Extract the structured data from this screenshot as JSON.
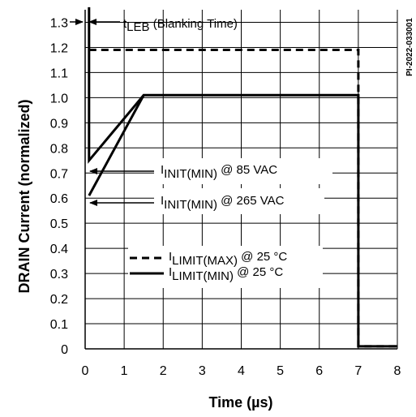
{
  "chart_data": {
    "type": "line",
    "xlabel": "Time (µs)",
    "ylabel": "DRAIN Current   (normalized)",
    "figure_id": "PI-2022-033001",
    "xlim": [
      0,
      8
    ],
    "ylim": [
      0,
      1.35
    ],
    "x_ticks": [
      "0",
      "1",
      "2",
      "3",
      "4",
      "5",
      "6",
      "7",
      "8"
    ],
    "y_ticks": [
      "0",
      "0.1",
      "0.2",
      "0.3",
      "0.4",
      "0.5",
      "0.6",
      "0.7",
      "0.8",
      "0.9",
      "1.0",
      "1.1",
      "1.2",
      "1.3"
    ],
    "grid": true,
    "series": [
      {
        "name": "ILIMIT(MAX) @ 25 °C",
        "style": "dashed",
        "points": [
          [
            0.1,
            1.19
          ],
          [
            7,
            1.19
          ],
          [
            7,
            0.01
          ],
          [
            8,
            0.01
          ]
        ]
      },
      {
        "name": "ILIMIT(MIN) @ 25 °C",
        "style": "solid",
        "points": [
          [
            0.1,
            1.36
          ],
          [
            0.1,
            0.75
          ],
          [
            1.5,
            1.01
          ],
          [
            7,
            1.01
          ],
          [
            7,
            0.01
          ],
          [
            8,
            0.01
          ]
        ]
      },
      {
        "name": "IINIT(MIN) @ 265 VAC",
        "style": "solid",
        "points": [
          [
            0.1,
            0.61
          ],
          [
            1.5,
            1.01
          ]
        ]
      }
    ],
    "annotations": {
      "tleb": {
        "main": "t",
        "sub": "LEB",
        "rest": " (Blanking Time)"
      },
      "iinit_85": {
        "main": "I",
        "sub": "INIT(MIN)",
        "rest": " @ 85 VAC"
      },
      "iinit_265": {
        "main": "I",
        "sub": "INIT(MIN)",
        "rest": " @ 265 VAC"
      },
      "legend_max": {
        "main": "I",
        "sub": "LIMIT(MAX)",
        "rest": " @ 25 °C"
      },
      "legend_min": {
        "main": "I",
        "sub": "LIMIT(MIN)",
        "rest": " @ 25 °C"
      }
    }
  }
}
